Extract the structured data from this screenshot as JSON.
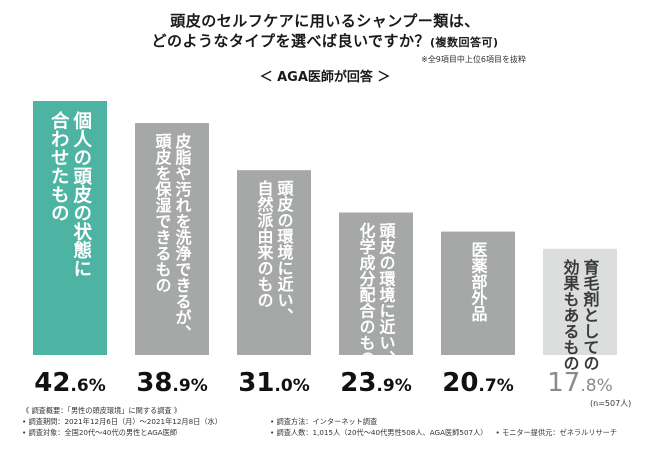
{
  "header": {
    "title_line1": "頭皮のセルフケアに用いるシャンプー類は、",
    "title_line2": "どのようなタイプを選べば良いですか？",
    "title_suffix": "(複数回答可)",
    "note": "※全9項目中上位6項目を抜粋",
    "subtitle": "＜ AGA医師が回答 ＞"
  },
  "chart_data": {
    "type": "bar",
    "title": "頭皮のセルフケアに用いるシャンプー類は、どのようなタイプを選べば良いですか？(複数回答可)",
    "subtitle": "＜ AGA医師が回答 ＞",
    "unit": "%",
    "ylim": [
      0,
      42.6
    ],
    "categories": [
      "個人の頭皮の状態に合わせたもの",
      "皮脂や汚れを洗浄できるが、頭皮を保湿できるもの",
      "自然派由来のもの",
      "頭皮の環境に近い、化学成分配合のもの",
      "医薬部外品",
      "育毛剤としての効果もあるもの"
    ],
    "label_columns": [
      [
        "個人の頭皮の状態に",
        "合わせたもの"
      ],
      [
        "皮脂や汚れを洗浄できるが、",
        "頭皮を保湿できるもの"
      ],
      [
        "頭皮の環境に近い、",
        "自然派由来のもの"
      ],
      [
        "頭皮の環境に近い、",
        "化学成分配合のもの"
      ],
      [
        "医薬部外品"
      ],
      [
        "育毛剤としての",
        "効果もあるもの"
      ]
    ],
    "values": [
      42.6,
      38.9,
      31.0,
      23.9,
      20.7,
      17.8
    ],
    "value_labels": [
      {
        "int": "42",
        "dec": ".6%"
      },
      {
        "int": "38",
        "dec": ".9%"
      },
      {
        "int": "31",
        "dec": ".0%"
      },
      {
        "int": "23",
        "dec": ".9%"
      },
      {
        "int": "20",
        "dec": ".7%"
      },
      {
        "int": "17",
        "dec": ".8%"
      }
    ],
    "colors": {
      "highlight": "#4db3a2",
      "default": "#a6a8a8",
      "last": "#dcdddd",
      "label_dark": "#3a3a3a",
      "label_light": "#ffffff",
      "value_main": "#111111",
      "value_light": "#8a8a8a"
    }
  },
  "n_note": "(n=507人)",
  "footer": {
    "head": "《 調査概要：「男性の頭皮環境」に関する調査 》",
    "period": "• 調査期間：2021年12月6日（月）〜2021年12月8日（水）",
    "method": "• 調査方法：インターネット調査",
    "target": "• 調査対象：全国20代〜40代の男性とAGA医師",
    "count": "• 調査人数：1,015人（20代〜40代男性508人、AGA医師507人）",
    "monitor": "• モニター提供元：ゼネラルリサーチ"
  }
}
